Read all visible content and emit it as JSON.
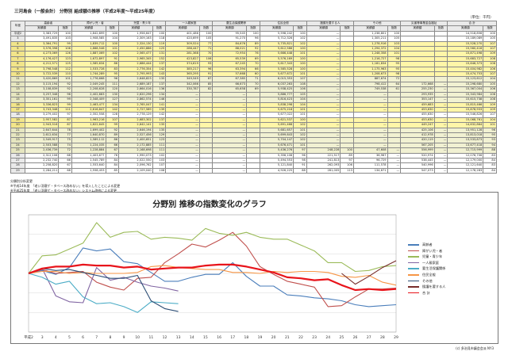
{
  "doc": {
    "title": "三河島会（一般会計） 分野別 給成額の推移（平成2年度～平成25年度）",
    "unit": "（単位：千円）",
    "footer": "(c) 多治見市議会会派 NY3"
  },
  "table": {
    "year_header": "年度",
    "groups": [
      "高齢者",
      "障がい児・者",
      "児童・青少年",
      "一人親家庭",
      "要生活保護関係",
      "住民全般",
      "援護を要する人",
      "その他",
      "災害等事業金会福祉",
      "合 計"
    ],
    "sub": [
      "実績額",
      "指数"
    ],
    "rows": [
      {
        "y": "平成2",
        "cls": "rW",
        "v": [
          "3,383,729",
          "100",
          "1,842,899",
          "100",
          "1,956,647",
          "100",
          "401,486",
          "100",
          "95,545",
          "100",
          "5,598,242",
          "100",
          "—",
          "",
          "1,238,801",
          "100",
          "",
          "",
          "14,518,856",
          "100"
        ]
      },
      {
        "y": "3",
        "cls": "rW",
        "v": [
          "3,491,835",
          "103",
          "1,908,585",
          "104",
          "2,309,163",
          "118",
          "420,699",
          "105",
          "91,270",
          "96",
          "5,712,326",
          "102",
          "—",
          "",
          "1,305,211",
          "105",
          "",
          "",
          "15,189,089",
          "105"
        ]
      },
      {
        "y": "4",
        "cls": "rY",
        "v": [
          "3,364,791",
          "99",
          "1,839,712",
          "100",
          "2,324,130",
          "119",
          "309,524",
          "77",
          "84,676",
          "89",
          "5,735,821",
          "102",
          "—",
          "",
          "1,278,916",
          "103",
          "",
          "",
          "15,528,270",
          "107"
        ]
      },
      {
        "y": "5",
        "cls": "rY",
        "v": [
          "3,576,398",
          "106",
          "1,868,546",
          "101",
          "2,450,886",
          "125",
          "286,447",
          "71",
          "88,021",
          "92",
          "5,612,586",
          "100",
          "—",
          "",
          "1,294,372",
          "104",
          "",
          "",
          "15,560,416",
          "107"
        ]
      },
      {
        "y": "6",
        "cls": "rY",
        "v": [
          "4,273,069",
          "126",
          "1,887,069",
          "102",
          "2,565,477",
          "131",
          "281,368",
          "70",
          "72,954",
          "76",
          "5,666,448",
          "101",
          "—",
          "",
          "1,248,358",
          "101",
          "",
          "",
          "15,871,498",
          "109"
        ]
      },
      {
        "y": "7",
        "cls": "rY",
        "v": [
          "4,176,427",
          "123",
          "1,672,897",
          "91",
          "2,965,345",
          "152",
          "423,827",
          "106",
          "65,539",
          "69",
          "5,576,169",
          "100",
          "—",
          "",
          "1,216,727",
          "98",
          "",
          "",
          "15,683,727",
          "108"
        ]
      },
      {
        "y": "8",
        "cls": "rY",
        "v": [
          "4,212,571",
          "125",
          "1,585,634",
          "86",
          "2,686,444",
          "137",
          "374,619",
          "93",
          "67,245",
          "70",
          "5,617,343",
          "100",
          "—",
          "",
          "1,181,834",
          "95",
          "",
          "",
          "15,646,373",
          "108"
        ]
      },
      {
        "y": "9",
        "cls": "rY",
        "v": [
          "3,798,548",
          "112",
          "1,533,728",
          "83",
          "2,776,354",
          "142",
          "385,217",
          "96",
          "63,394",
          "66",
          "5,585,528",
          "100",
          "—",
          "",
          "1,175,963",
          "95",
          "",
          "",
          "15,404,982",
          "106"
        ]
      },
      {
        "y": "10",
        "cls": "rY",
        "v": [
          "3,722,539",
          "110",
          "1,744,289",
          "95",
          "2,795,993",
          "143",
          "365,295",
          "91",
          "57,668",
          "60",
          "5,677,672",
          "101",
          "—",
          "",
          "1,208,673",
          "98",
          "",
          "",
          "15,474,753",
          "107"
        ]
      },
      {
        "y": "11",
        "cls": "rG",
        "v": [
          "3,420,869",
          "101",
          "1,776,668",
          "96",
          "2,648,823",
          "135",
          "349,549",
          "87",
          "67,385",
          "71",
          "6,015,353",
          "107",
          "—",
          "",
          "887,674",
          "72",
          "",
          "",
          "15,123,612",
          "104"
        ]
      },
      {
        "y": "12",
        "cls": "rG",
        "v": [
          "3,115,194",
          "92",
          "2,049,245",
          "111",
          "2,689,187",
          "137",
          "342,066",
          "85",
          "66,673",
          "70",
          "6,037,263",
          "108",
          "—",
          "",
          "798,412",
          "64",
          "172,668",
          "—",
          "15,298,680",
          "105"
        ]
      },
      {
        "y": "13",
        "cls": "rG",
        "v": [
          "3,108,839",
          "92",
          "2,208,628",
          "120",
          "2,664,016",
          "136",
          "330,787",
          "82",
          "65,658",
          "69",
          "5,938,425",
          "106",
          "—",
          "",
          "749,538",
          "61",
          "255,230",
          "—",
          "15,367,004",
          "106"
        ]
      },
      {
        "y": "14",
        "cls": "rG",
        "v": [
          "3,257,348",
          "96",
          "2,402,683",
          "130",
          "2,620,296",
          "134",
          "—",
          "",
          "—",
          "",
          "5,886,777",
          "105",
          "—",
          "",
          "—",
          "",
          "293,935",
          "—",
          "15,343,984",
          "106"
        ]
      },
      {
        "y": "15",
        "cls": "rG",
        "v": [
          "3,351,161",
          "99",
          "2,348,409",
          "127",
          "2,862,574",
          "146",
          "—",
          "",
          "—",
          "",
          "5,816,423",
          "104",
          "—",
          "",
          "—",
          "",
          "353,147",
          "—",
          "15,615,738",
          "108"
        ]
      },
      {
        "y": "16",
        "cls": "rY",
        "v": [
          "3,336,823",
          "99",
          "2,463,477",
          "134",
          "2,765,047",
          "141",
          "—",
          "",
          "—",
          "",
          "5,838,298",
          "104",
          "—",
          "",
          "—",
          "",
          "459,683",
          "—",
          "15,815,466",
          "109"
        ]
      },
      {
        "y": "17",
        "cls": "rY",
        "v": [
          "3,743,348",
          "111",
          "2,616,847",
          "142",
          "2,727,589",
          "139",
          "—",
          "",
          "—",
          "",
          "5,675,218",
          "101",
          "—",
          "",
          "—",
          "",
          "453,630",
          "—",
          "15,878,933",
          "109"
        ]
      },
      {
        "y": "18",
        "cls": "rW",
        "v": [
          "3,279,402",
          "97",
          "2,352,558",
          "128",
          "2,778,129",
          "142",
          "—",
          "",
          "—",
          "",
          "5,677,022",
          "101",
          "—",
          "",
          "—",
          "",
          "455,630",
          "—",
          "15,546,826",
          "107"
        ]
      },
      {
        "y": "19",
        "cls": "rY",
        "v": [
          "2,957,582",
          "87",
          "1,963,216",
          "107",
          "2,683,302",
          "137",
          "—",
          "",
          "—",
          "",
          "5,621,537",
          "100",
          "—",
          "",
          "—",
          "",
          "453,630",
          "—",
          "15,068,761",
          "104"
        ]
      },
      {
        "y": "20",
        "cls": "rY",
        "v": [
          "2,943,516",
          "87",
          "1,822,645",
          "99",
          "2,642,141",
          "135",
          "—",
          "",
          "—",
          "",
          "5,691,468",
          "102",
          "—",
          "",
          "—",
          "",
          "449,247",
          "—",
          "14,632,864",
          "101"
        ]
      },
      {
        "y": "21",
        "cls": "rG",
        "v": [
          "2,647,644",
          "78",
          "1,699,402",
          "92",
          "2,646,194",
          "135",
          "—",
          "",
          "—",
          "",
          "5,681,657",
          "101",
          "—",
          "",
          "—",
          "",
          "425,106",
          "—",
          "13,951,128",
          "96"
        ]
      },
      {
        "y": "22",
        "cls": "rG",
        "v": [
          "2,612,634",
          "77",
          "1,640,870",
          "89",
          "2,527,456",
          "129",
          "—",
          "",
          "—",
          "",
          "5,699,643",
          "102",
          "—",
          "",
          "—",
          "",
          "412,978",
          "—",
          "13,813,018",
          "95"
        ]
      },
      {
        "y": "23",
        "cls": "rG",
        "v": [
          "2,549,917",
          "75",
          "1,589,112",
          "86",
          "2,400,651",
          "123",
          "—",
          "",
          "—",
          "",
          "5,704,147",
          "102",
          "—",
          "",
          "—",
          "",
          "420,119",
          "—",
          "13,533,873",
          "93"
        ]
      },
      {
        "y": "24",
        "cls": "rG",
        "v": [
          "2,503,588",
          "74",
          "1,224,035",
          "66",
          "2,172,885",
          "111",
          "—",
          "",
          "—",
          "",
          "5,676,471",
          "101",
          "—",
          "",
          "—",
          "",
          "567,205",
          "—",
          "13,677,418",
          "94"
        ]
      },
      {
        "y": "25",
        "cls": "rG",
        "v": [
          "2,436,739",
          "72",
          "1,228,884",
          "67",
          "2,168,698",
          "111",
          "—",
          "",
          "—",
          "",
          "5,436,276",
          "97",
          "248,228",
          "100",
          "47,608",
          "—",
          "556,999",
          "—",
          "12,715,999",
          "88"
        ]
      },
      {
        "y": "26",
        "cls": "rW",
        "v": [
          "2,312,106",
          "68",
          "1,403,677",
          "76",
          "1,990,073",
          "102",
          "—",
          "",
          "—",
          "",
          "5,356,108",
          "96",
          "221,517",
          "89",
          "36,967",
          "—",
          "520,974",
          "—",
          "12,076,706",
          "83"
        ]
      },
      {
        "y": "27",
        "cls": "rW",
        "v": [
          "2,232,740",
          "66",
          "1,545,789",
          "84",
          "2,022,550",
          "103",
          "—",
          "",
          "—",
          "",
          "5,494,553",
          "98",
          "241,813",
          "97",
          "96,729",
          "—",
          "538,445",
          "—",
          "12,179,000",
          "84"
        ]
      },
      {
        "y": "28",
        "cls": "rW",
        "v": [
          "2,258,820",
          "67",
          "1,553,640",
          "84",
          "2,096,762",
          "107",
          "—",
          "",
          "—",
          "",
          "5,121,840",
          "91",
          "262,093",
          "106",
          "111,578",
          "—",
          "540,996",
          "—",
          "12,121,640",
          "83"
        ]
      },
      {
        "y": "29",
        "cls": "rW",
        "v": [
          "2,284,211",
          "68",
          "1,558,453",
          "85",
          "2,109,040",
          "108",
          "—",
          "",
          "—",
          "",
          "4,926,225",
          "88",
          "281,005",
          "113",
          "134,671",
          "—",
          "547,073",
          "—",
          "12,178,283",
          "84"
        ]
      }
    ]
  },
  "notes": {
    "head": "分類別分析変更",
    "lines": [
      "※平成14年度　「老い羽寝ゲ・タベース改めない」を導入したことによる変更",
      "※平成25年度　「老い羽寝ゲ・タベース改めない」システム改修による変更"
    ]
  },
  "chart_data": {
    "type": "line",
    "title": "分野別 推移の指数変化のグラフ",
    "x": [
      "平成2",
      "3",
      "4",
      "5",
      "6",
      "7",
      "8",
      "9",
      "10",
      "11",
      "12",
      "13",
      "14",
      "15",
      "16",
      "17",
      "18",
      "19",
      "20",
      "21",
      "22",
      "23",
      "24",
      "25",
      "26",
      "27",
      "28",
      "29"
    ],
    "ylim": [
      40,
      160
    ],
    "grid": true,
    "legend": "right",
    "series": [
      {
        "name": "高齢者",
        "color": "#4a7ebb",
        "values": [
          100,
          103,
          99,
          106,
          126,
          123,
          125,
          112,
          110,
          101,
          92,
          92,
          96,
          99,
          99,
          111,
          97,
          87,
          87,
          78,
          77,
          75,
          74,
          72,
          68,
          66,
          67,
          68
        ]
      },
      {
        "name": "障がい児・者",
        "color": "#c0504d",
        "values": [
          100,
          104,
          100,
          101,
          102,
          91,
          86,
          83,
          95,
          96,
          111,
          120,
          130,
          127,
          134,
          142,
          128,
          107,
          99,
          92,
          89,
          86,
          66,
          67,
          76,
          84,
          84,
          85
        ]
      },
      {
        "name": "児童・青少年",
        "color": "#9bbb59",
        "values": [
          100,
          118,
          119,
          125,
          131,
          152,
          137,
          142,
          143,
          135,
          137,
          136,
          134,
          146,
          141,
          139,
          142,
          137,
          135,
          135,
          129,
          123,
          111,
          111,
          102,
          103,
          107,
          108
        ]
      },
      {
        "name": "一人親家庭",
        "color": "#8064a2",
        "values": [
          100,
          105,
          77,
          71,
          70,
          106,
          93,
          96,
          91,
          87,
          85,
          82,
          null,
          null,
          null,
          null,
          null,
          null,
          null,
          null,
          null,
          null,
          null,
          null,
          null,
          null,
          null,
          null
        ]
      },
      {
        "name": "要生活保護関係",
        "color": "#4bacc6",
        "values": [
          100,
          96,
          89,
          92,
          76,
          69,
          70,
          66,
          60,
          71,
          70,
          69,
          null,
          null,
          null,
          null,
          null,
          null,
          null,
          null,
          null,
          null,
          null,
          null,
          null,
          null,
          null,
          null
        ]
      },
      {
        "name": "住民全般",
        "color": "#f79646",
        "values": [
          100,
          102,
          102,
          100,
          101,
          100,
          100,
          100,
          101,
          107,
          108,
          106,
          105,
          104,
          104,
          101,
          101,
          100,
          102,
          101,
          102,
          102,
          101,
          97,
          96,
          98,
          91,
          88
        ]
      },
      {
        "name": "その他",
        "color": "#2c4d75",
        "values": [
          100,
          105,
          103,
          104,
          101,
          98,
          95,
          95,
          98,
          72,
          64,
          61,
          null,
          null,
          null,
          null,
          null,
          null,
          null,
          null,
          null,
          null,
          null,
          null,
          null,
          null,
          null,
          null
        ]
      },
      {
        "name": "援護を要する人",
        "color": "#772c2a",
        "values": [
          null,
          null,
          null,
          null,
          null,
          null,
          null,
          null,
          null,
          null,
          null,
          null,
          null,
          null,
          null,
          null,
          null,
          null,
          null,
          null,
          null,
          null,
          null,
          100,
          89,
          97,
          106,
          113
        ]
      },
      {
        "name": "合 計",
        "color": "#e8141b",
        "values": [
          100,
          105,
          107,
          107,
          109,
          108,
          108,
          106,
          107,
          104,
          105,
          106,
          106,
          108,
          109,
          109,
          107,
          104,
          101,
          96,
          95,
          93,
          94,
          88,
          83,
          84,
          83,
          84
        ]
      }
    ]
  }
}
